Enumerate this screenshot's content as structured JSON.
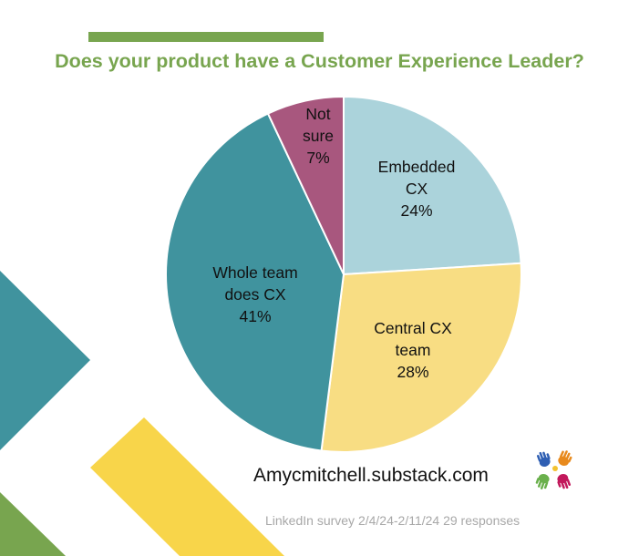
{
  "chart_data": {
    "type": "pie",
    "title": "Does your product have a Customer Experience Leader?",
    "slices": [
      {
        "lines": [
          "Embedded",
          "CX",
          "24%"
        ],
        "value": 24,
        "color": "#abd3db"
      },
      {
        "lines": [
          "Central CX",
          "team",
          "28%"
        ],
        "value": 28,
        "color": "#f8dd83"
      },
      {
        "lines": [
          "Whole team",
          "does CX",
          "41%"
        ],
        "value": 41,
        "color": "#40939e"
      },
      {
        "lines": [
          "Not",
          "sure",
          "7%"
        ],
        "value": 7,
        "color": "#a8577e"
      }
    ]
  },
  "footer": {
    "website": "Amycmitchell.substack.com",
    "survey_note": "LinkedIn survey 2/4/24-2/11/24 29 responses"
  },
  "colors": {
    "title": "#78a54f",
    "accent_green": "#78a54f",
    "accent_teal": "#40939e",
    "accent_yellow": "#f8d54a"
  },
  "logo": {
    "icon": "colorful-hands-logo"
  }
}
